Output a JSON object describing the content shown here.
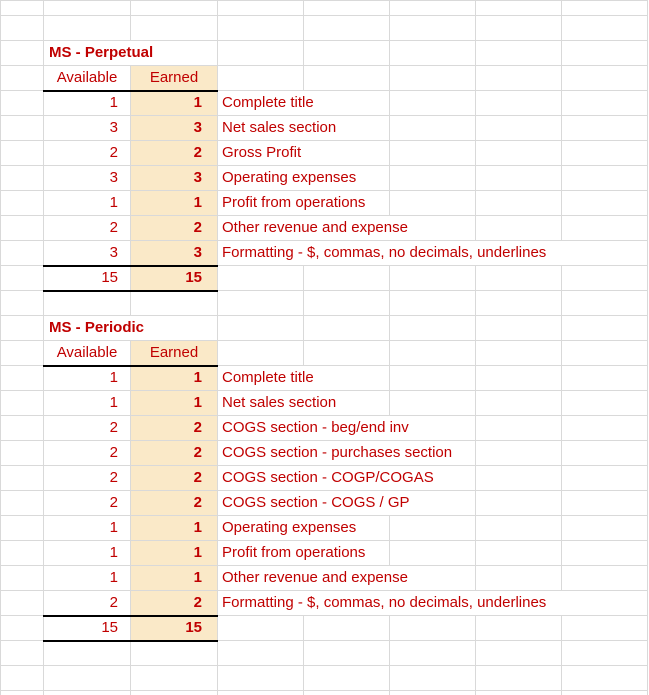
{
  "colors": {
    "accent_red": "#C00000",
    "earned_fill": "#FAE9C8",
    "gridline": "#D9D9D9",
    "heavy_border": "#000000"
  },
  "sections": [
    {
      "title": "MS - Perpetual",
      "headers": {
        "available": "Available",
        "earned": "Earned"
      },
      "rows": [
        {
          "available": "1",
          "earned": "1",
          "label": "Complete title"
        },
        {
          "available": "3",
          "earned": "3",
          "label": "Net sales section"
        },
        {
          "available": "2",
          "earned": "2",
          "label": "Gross Profit"
        },
        {
          "available": "3",
          "earned": "3",
          "label": "Operating expenses"
        },
        {
          "available": "1",
          "earned": "1",
          "label": "Profit from operations"
        },
        {
          "available": "2",
          "earned": "2",
          "label": "Other revenue and expense"
        },
        {
          "available": "3",
          "earned": "3",
          "label": "Formatting - $, commas, no decimals, underlines"
        }
      ],
      "totals": {
        "available": "15",
        "earned": "15"
      }
    },
    {
      "title": "MS - Periodic",
      "headers": {
        "available": "Available",
        "earned": "Earned"
      },
      "rows": [
        {
          "available": "1",
          "earned": "1",
          "label": "Complete title"
        },
        {
          "available": "1",
          "earned": "1",
          "label": "Net sales section"
        },
        {
          "available": "2",
          "earned": "2",
          "label": "COGS section - beg/end inv"
        },
        {
          "available": "2",
          "earned": "2",
          "label": "COGS section - purchases section"
        },
        {
          "available": "2",
          "earned": "2",
          "label": "COGS section - COGP/COGAS"
        },
        {
          "available": "2",
          "earned": "2",
          "label": "COGS section - COGS / GP"
        },
        {
          "available": "1",
          "earned": "1",
          "label": "Operating expenses"
        },
        {
          "available": "1",
          "earned": "1",
          "label": "Profit from operations"
        },
        {
          "available": "1",
          "earned": "1",
          "label": "Other revenue and expense"
        },
        {
          "available": "2",
          "earned": "2",
          "label": "Formatting - $, commas, no decimals, underlines"
        }
      ],
      "totals": {
        "available": "15",
        "earned": "15"
      }
    }
  ]
}
